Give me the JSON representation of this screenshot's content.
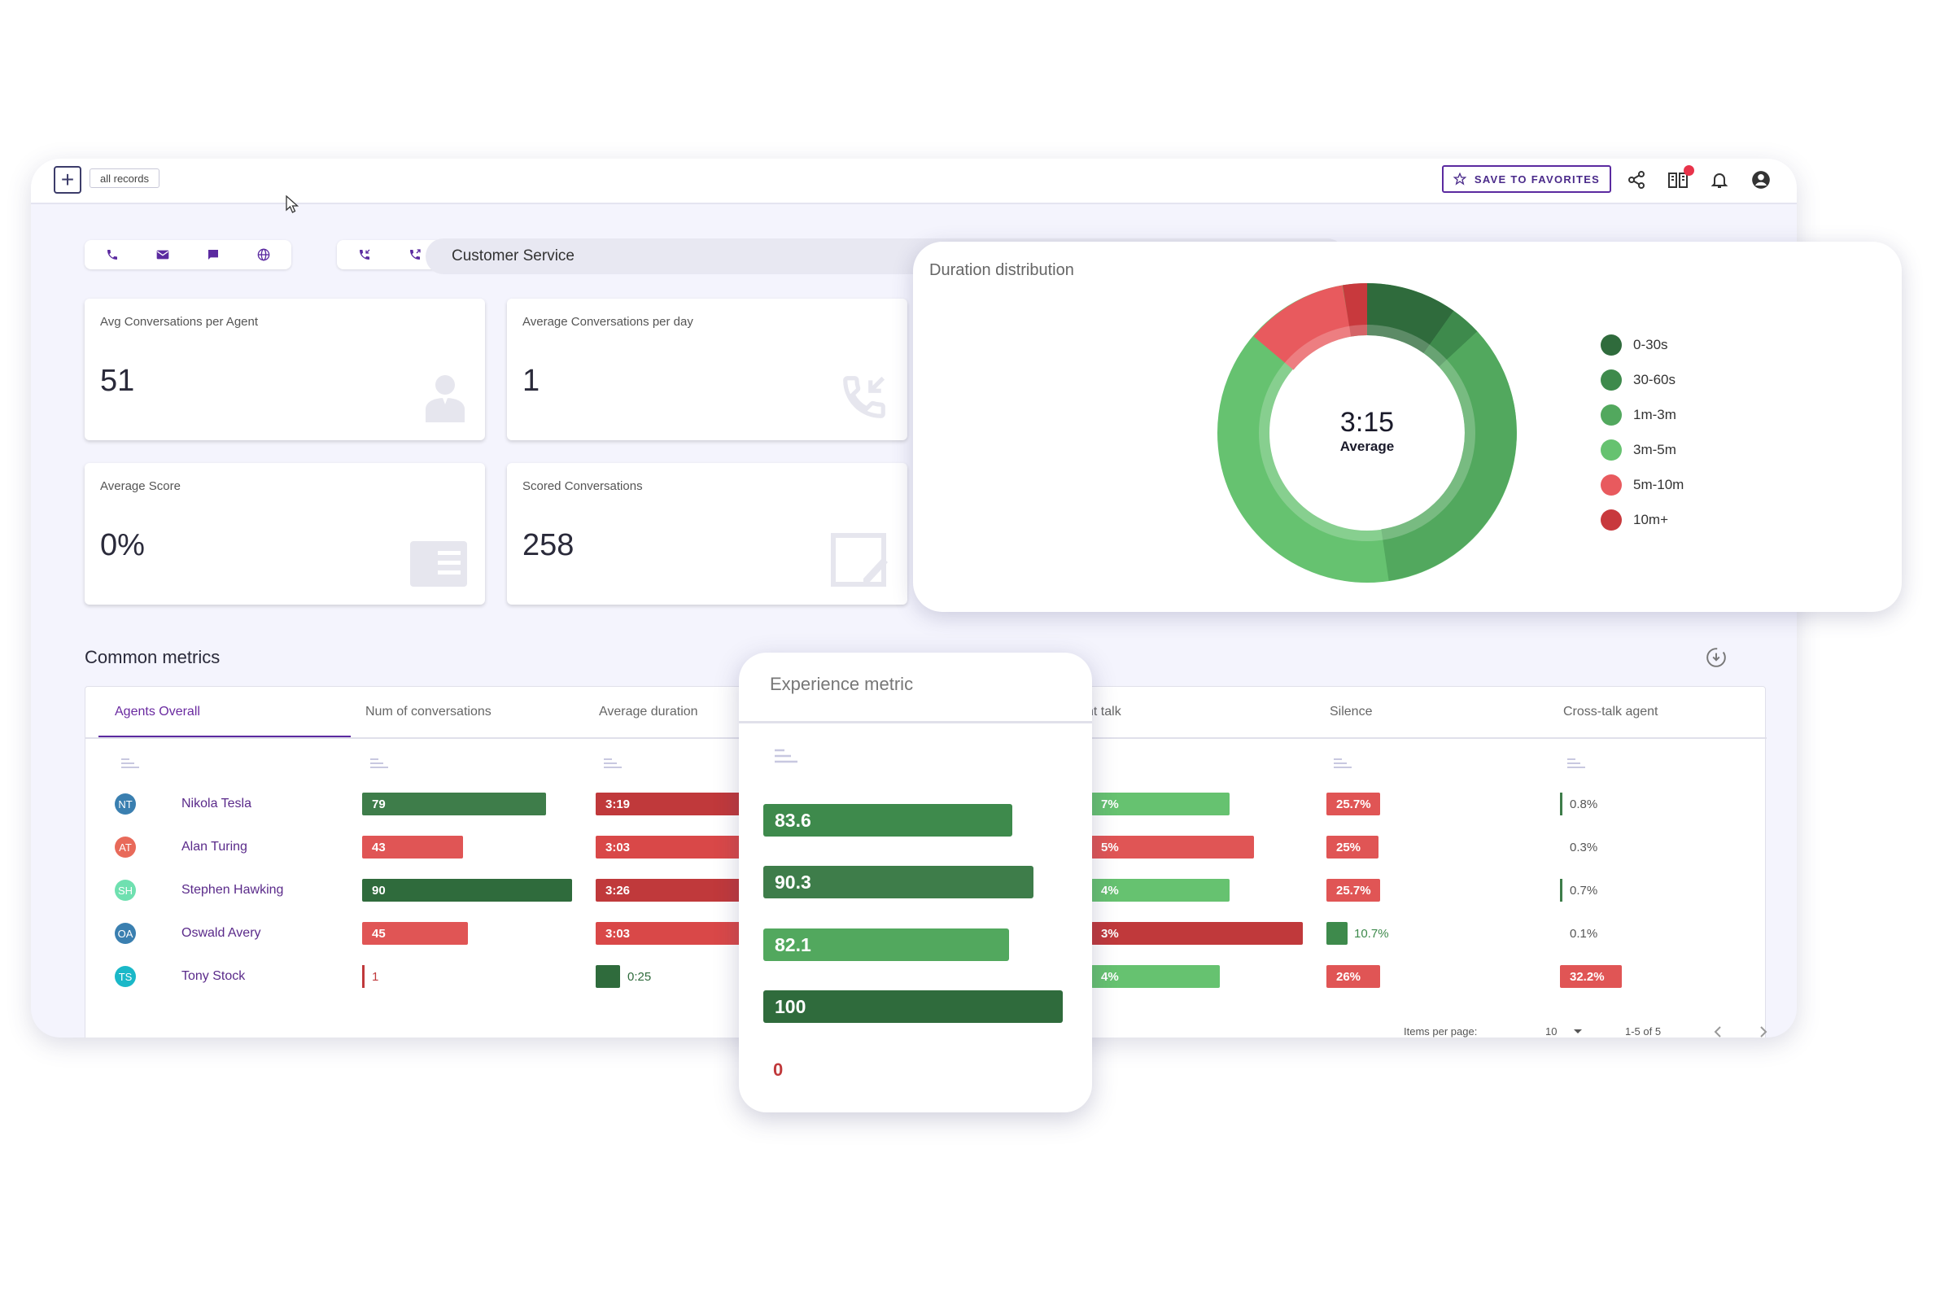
{
  "topbar": {
    "records_chip": "all records",
    "favorites_label": "SAVE TO FAVORITES"
  },
  "filter": {
    "channels": [
      "phone",
      "email",
      "chat",
      "web",
      "inbound-call",
      "outbound-call"
    ],
    "search_value": "Customer Service"
  },
  "kpis": [
    {
      "title": "Avg Conversations per Agent",
      "value": "51",
      "icon": "agent-icon"
    },
    {
      "title": "Average Conversations per day",
      "value": "1",
      "icon": "incoming-call-icon"
    },
    {
      "title": "Average Score",
      "value": "0%",
      "icon": "score-card-icon"
    },
    {
      "title": "Scored Conversations",
      "value": "258",
      "icon": "edit-icon"
    }
  ],
  "metrics": {
    "title": "Common metrics",
    "columns": [
      "Agents Overall",
      "Num of conversations",
      "Average duration",
      "nt talk",
      "Silence",
      "Cross-talk agent"
    ],
    "rows": [
      {
        "initials": "NT",
        "name": "Nikola Tesla",
        "avatar_color": "#3a7fb0",
        "conversations": "79",
        "conv_value": 79,
        "duration": "3:19",
        "talk": "7%",
        "silence": "25.7%",
        "crosstalk": "0.8%"
      },
      {
        "initials": "AT",
        "name": "Alan Turing",
        "avatar_color": "#e86a5a",
        "conversations": "43",
        "conv_value": 43,
        "duration": "3:03",
        "talk": "5%",
        "silence": "25%",
        "crosstalk": "0.3%"
      },
      {
        "initials": "SH",
        "name": "Stephen Hawking",
        "avatar_color": "#6fe0b0",
        "conversations": "90",
        "conv_value": 90,
        "duration": "3:26",
        "talk": "4%",
        "silence": "25.7%",
        "crosstalk": "0.7%"
      },
      {
        "initials": "OA",
        "name": "Oswald Avery",
        "avatar_color": "#3a7fb0",
        "conversations": "45",
        "conv_value": 45,
        "duration": "3:03",
        "talk": "3%",
        "silence": "10.7%",
        "crosstalk": "0.1%"
      },
      {
        "initials": "TS",
        "name": "Tony Stock",
        "avatar_color": "#1ab8c8",
        "conversations": "1",
        "conv_value": 1,
        "duration": "0:25",
        "talk": "4%",
        "silence": "26%",
        "crosstalk": "32.2%"
      }
    ],
    "pager": {
      "items_label": "Items per page:",
      "per_page": "10",
      "range": "1-5 of 5"
    }
  },
  "duration": {
    "title": "Duration distribution",
    "center_value": "3:15",
    "center_label": "Average",
    "legend": [
      {
        "label": "0-30s",
        "color": "#2f6b3c"
      },
      {
        "label": "30-60s",
        "color": "#3e8a4c"
      },
      {
        "label": "1m-3m",
        "color": "#52a85e"
      },
      {
        "label": "3m-5m",
        "color": "#66c270"
      },
      {
        "label": "5m-10m",
        "color": "#e85a5e"
      },
      {
        "label": "10m+",
        "color": "#c8393d"
      }
    ]
  },
  "experience": {
    "title": "Experience metric",
    "values": [
      "83.6",
      "90.3",
      "82.1",
      "100",
      "0"
    ],
    "numeric": [
      83.6,
      90.3,
      82.1,
      100,
      0
    ]
  },
  "colors": {
    "accent": "#5b2aa0",
    "green_dark": "#2f6b3c",
    "green": "#3e8a4c",
    "green_light": "#66c270",
    "red": "#e85a5e",
    "red_dark": "#c0393b"
  }
}
